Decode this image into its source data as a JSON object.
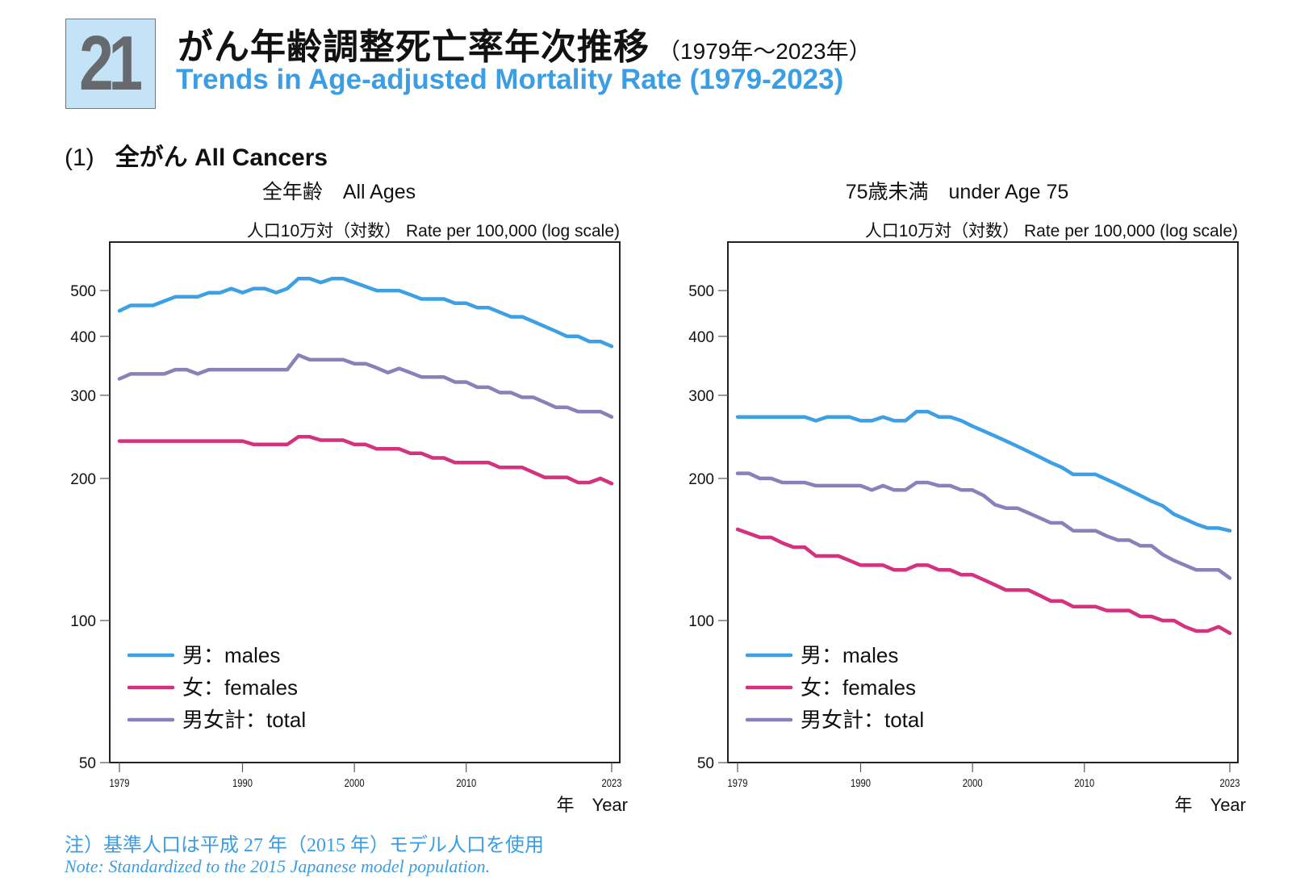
{
  "header": {
    "badge_number": "21",
    "title_jp": "がん年齢調整死亡率年次推移",
    "title_range": "（1979年～2023年）",
    "title_en": "Trends in Age-adjusted Mortality Rate (1979-2023)"
  },
  "section": {
    "number": "(1)",
    "label": "全がん All Cancers"
  },
  "notes": {
    "jp": "注）基準人口は平成 27 年（2015 年）モデル人口を使用",
    "en": "Note: Standardized to the 2015 Japanese model population."
  },
  "colors": {
    "males": "#3d9fe4",
    "females": "#d4317e",
    "total": "#8c80bb",
    "title_blue": "#3b9de3",
    "badge_bg": "#c5e3f6"
  },
  "chart_data": [
    {
      "type": "line",
      "title": "全年齢　All Ages",
      "ylabel": "人口10万対（対数） Rate per 100,000 (log scale)",
      "xlabel": "年　Year",
      "yscale": "log",
      "ylim": [
        50,
        620
      ],
      "xlim": [
        1979,
        2023
      ],
      "yticks": [
        50,
        100,
        200,
        300,
        400,
        500
      ],
      "xticks": [
        1979,
        1990,
        2000,
        2010,
        2023
      ],
      "grid": false,
      "legend_position": "bottom-left",
      "x": [
        1979,
        1980,
        1981,
        1982,
        1983,
        1984,
        1985,
        1986,
        1987,
        1988,
        1989,
        1990,
        1991,
        1992,
        1993,
        1994,
        1995,
        1996,
        1997,
        1998,
        1999,
        2000,
        2001,
        2002,
        2003,
        2004,
        2005,
        2006,
        2007,
        2008,
        2009,
        2010,
        2011,
        2012,
        2013,
        2014,
        2015,
        2016,
        2017,
        2018,
        2019,
        2020,
        2021,
        2022,
        2023
      ],
      "series": [
        {
          "name": "男：males",
          "key": "males",
          "values": [
            453,
            465,
            465,
            465,
            475,
            485,
            485,
            485,
            495,
            495,
            505,
            495,
            505,
            505,
            495,
            505,
            530,
            530,
            520,
            530,
            530,
            520,
            510,
            500,
            500,
            500,
            490,
            480,
            480,
            480,
            470,
            470,
            460,
            460,
            450,
            440,
            440,
            430,
            420,
            410,
            400,
            400,
            390,
            390,
            381
          ]
        },
        {
          "name": "女：females",
          "key": "females",
          "values": [
            240,
            240,
            240,
            240,
            240,
            240,
            240,
            240,
            240,
            240,
            240,
            240,
            236,
            236,
            236,
            236,
            245,
            245,
            241,
            241,
            241,
            236,
            236,
            231,
            231,
            231,
            226,
            226,
            221,
            221,
            216,
            216,
            216,
            216,
            211,
            211,
            211,
            206,
            201,
            201,
            201,
            196,
            196,
            200,
            195
          ]
        },
        {
          "name": "男女計：total",
          "key": "total",
          "values": [
            325,
            333,
            333,
            333,
            333,
            340,
            340,
            333,
            340,
            340,
            340,
            340,
            340,
            340,
            340,
            340,
            365,
            357,
            357,
            357,
            357,
            350,
            350,
            343,
            335,
            342,
            335,
            328,
            328,
            328,
            320,
            320,
            312,
            312,
            304,
            304,
            297,
            297,
            290,
            283,
            283,
            277,
            277,
            277,
            270
          ]
        }
      ]
    },
    {
      "type": "line",
      "title": "75歳未満　under Age 75",
      "ylabel": "人口10万対（対数） Rate per 100,000 (log scale)",
      "xlabel": "年　Year",
      "yscale": "log",
      "ylim": [
        50,
        620
      ],
      "xlim": [
        1979,
        2023
      ],
      "yticks": [
        50,
        100,
        200,
        300,
        400,
        500
      ],
      "xticks": [
        1979,
        1990,
        2000,
        2010,
        2023
      ],
      "grid": false,
      "legend_position": "bottom-left",
      "x": [
        1979,
        1980,
        1981,
        1982,
        1983,
        1984,
        1985,
        1986,
        1987,
        1988,
        1989,
        1990,
        1991,
        1992,
        1993,
        1994,
        1995,
        1996,
        1997,
        1998,
        1999,
        2000,
        2001,
        2002,
        2003,
        2004,
        2005,
        2006,
        2007,
        2008,
        2009,
        2010,
        2011,
        2012,
        2013,
        2014,
        2015,
        2016,
        2017,
        2018,
        2019,
        2020,
        2021,
        2022,
        2023
      ],
      "series": [
        {
          "name": "男：males",
          "key": "males",
          "values": [
            270,
            270,
            270,
            270,
            270,
            270,
            270,
            265,
            270,
            270,
            270,
            265,
            265,
            270,
            265,
            265,
            277,
            277,
            270,
            270,
            265,
            258,
            252,
            246,
            240,
            234,
            228,
            222,
            216,
            211,
            204,
            204,
            204,
            199,
            194,
            189,
            184,
            179,
            175,
            168,
            164,
            160,
            157,
            157,
            155
          ]
        },
        {
          "name": "女：females",
          "key": "females",
          "values": [
            156,
            153,
            150,
            150,
            146,
            143,
            143,
            137,
            137,
            137,
            134,
            131,
            131,
            131,
            128,
            128,
            131,
            131,
            128,
            128,
            125,
            125,
            122,
            119,
            116,
            116,
            116,
            113,
            110,
            110,
            107,
            107,
            107,
            105,
            105,
            105,
            102,
            102,
            100,
            100,
            97,
            95,
            95,
            97,
            94
          ]
        },
        {
          "name": "男女計：total",
          "key": "total",
          "values": [
            205,
            205,
            200,
            200,
            196,
            196,
            196,
            193,
            193,
            193,
            193,
            193,
            189,
            193,
            189,
            189,
            196,
            196,
            193,
            193,
            189,
            189,
            184,
            176,
            173,
            173,
            169,
            165,
            161,
            161,
            155,
            155,
            155,
            151,
            148,
            148,
            144,
            144,
            138,
            134,
            131,
            128,
            128,
            128,
            123
          ]
        }
      ]
    }
  ]
}
